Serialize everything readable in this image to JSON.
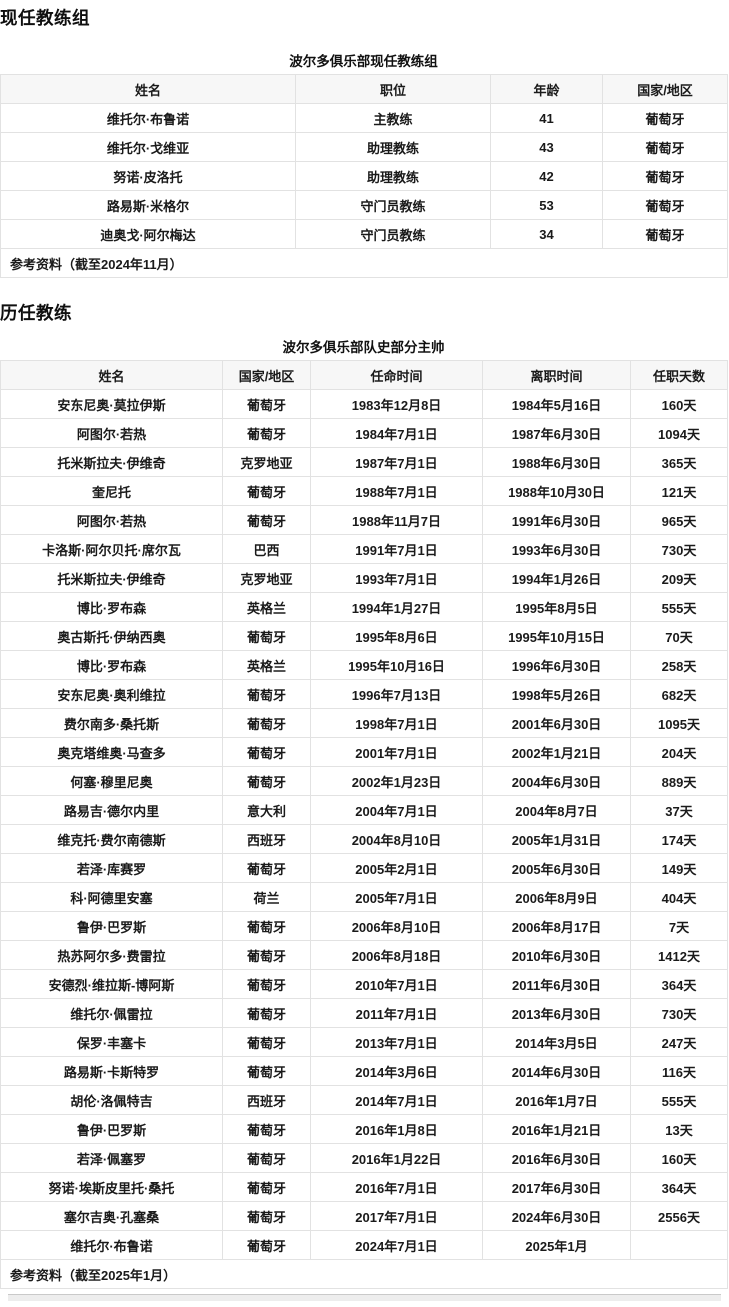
{
  "colors": {
    "table_header_bg": "#f7f7f7",
    "table_border": "#e2e2e2",
    "navbox_edge": "#ededed"
  },
  "sections": [
    {
      "heading": "现任教练组",
      "table": {
        "caption": "波尔多俱乐部现任教练组",
        "headers": [
          "姓名",
          "职位",
          "年龄",
          "国家/地区"
        ],
        "rows": [
          [
            "维托尔·布鲁诺",
            "主教练",
            "41",
            "葡萄牙"
          ],
          [
            "维托尔·戈维亚",
            "助理教练",
            "43",
            "葡萄牙"
          ],
          [
            "努诺·皮洛托",
            "助理教练",
            "42",
            "葡萄牙"
          ],
          [
            "路易斯·米格尔",
            "守门员教练",
            "53",
            "葡萄牙"
          ],
          [
            "迪奥戈·阿尔梅达",
            "守门员教练",
            "34",
            "葡萄牙"
          ]
        ],
        "footer": "参考资料（截至2024年11月）"
      }
    },
    {
      "heading": "历任教练",
      "table": {
        "caption": "波尔多俱乐部队史部分主帅",
        "headers": [
          "姓名",
          "国家/地区",
          "任命时间",
          "离职时间",
          "任职天数"
        ],
        "rows": [
          [
            "安东尼奥·莫拉伊斯",
            "葡萄牙",
            "1983年12月8日",
            "1984年5月16日",
            "160天"
          ],
          [
            "阿图尔·若热",
            "葡萄牙",
            "1984年7月1日",
            "1987年6月30日",
            "1094天"
          ],
          [
            "托米斯拉夫·伊维奇",
            "克罗地亚",
            "1987年7月1日",
            "1988年6月30日",
            "365天"
          ],
          [
            "奎尼托",
            "葡萄牙",
            "1988年7月1日",
            "1988年10月30日",
            "121天"
          ],
          [
            "阿图尔·若热",
            "葡萄牙",
            "1988年11月7日",
            "1991年6月30日",
            "965天"
          ],
          [
            "卡洛斯·阿尔贝托·席尔瓦",
            "巴西",
            "1991年7月1日",
            "1993年6月30日",
            "730天"
          ],
          [
            "托米斯拉夫·伊维奇",
            "克罗地亚",
            "1993年7月1日",
            "1994年1月26日",
            "209天"
          ],
          [
            "博比·罗布森",
            "英格兰",
            "1994年1月27日",
            "1995年8月5日",
            "555天"
          ],
          [
            "奥古斯托·伊纳西奥",
            "葡萄牙",
            "1995年8月6日",
            "1995年10月15日",
            "70天"
          ],
          [
            "博比·罗布森",
            "英格兰",
            "1995年10月16日",
            "1996年6月30日",
            "258天"
          ],
          [
            "安东尼奥·奥利维拉",
            "葡萄牙",
            "1996年7月13日",
            "1998年5月26日",
            "682天"
          ],
          [
            "费尔南多·桑托斯",
            "葡萄牙",
            "1998年7月1日",
            "2001年6月30日",
            "1095天"
          ],
          [
            "奥克塔维奥·马查多",
            "葡萄牙",
            "2001年7月1日",
            "2002年1月21日",
            "204天"
          ],
          [
            "何塞·穆里尼奥",
            "葡萄牙",
            "2002年1月23日",
            "2004年6月30日",
            "889天"
          ],
          [
            "路易吉·德尔内里",
            "意大利",
            "2004年7月1日",
            "2004年8月7日",
            "37天"
          ],
          [
            "维克托·费尔南德斯",
            "西班牙",
            "2004年8月10日",
            "2005年1月31日",
            "174天"
          ],
          [
            "若泽·库赛罗",
            "葡萄牙",
            "2005年2月1日",
            "2005年6月30日",
            "149天"
          ],
          [
            "科·阿德里安塞",
            "荷兰",
            "2005年7月1日",
            "2006年8月9日",
            "404天"
          ],
          [
            "鲁伊·巴罗斯",
            "葡萄牙",
            "2006年8月10日",
            "2006年8月17日",
            "7天"
          ],
          [
            "热苏阿尔多·费雷拉",
            "葡萄牙",
            "2006年8月18日",
            "2010年6月30日",
            "1412天"
          ],
          [
            "安德烈·维拉斯-博阿斯",
            "葡萄牙",
            "2010年7月1日",
            "2011年6月30日",
            "364天"
          ],
          [
            "维托尔·佩雷拉",
            "葡萄牙",
            "2011年7月1日",
            "2013年6月30日",
            "730天"
          ],
          [
            "保罗·丰塞卡",
            "葡萄牙",
            "2013年7月1日",
            "2014年3月5日",
            "247天"
          ],
          [
            "路易斯·卡斯特罗",
            "葡萄牙",
            "2014年3月6日",
            "2014年6月30日",
            "116天"
          ],
          [
            "胡伦·洛佩特吉",
            "西班牙",
            "2014年7月1日",
            "2016年1月7日",
            "555天"
          ],
          [
            "鲁伊·巴罗斯",
            "葡萄牙",
            "2016年1月8日",
            "2016年1月21日",
            "13天"
          ],
          [
            "若泽·佩塞罗",
            "葡萄牙",
            "2016年1月22日",
            "2016年6月30日",
            "160天"
          ],
          [
            "努诺·埃斯皮里托·桑托",
            "葡萄牙",
            "2016年7月1日",
            "2017年6月30日",
            "364天"
          ],
          [
            "塞尔吉奥·孔塞桑",
            "葡萄牙",
            "2017年7月1日",
            "2024年6月30日",
            "2556天"
          ],
          [
            "维托尔·布鲁诺",
            "葡萄牙",
            "2024年7月1日",
            "2025年1月",
            ""
          ]
        ],
        "footer": "参考资料（截至2025年1月）"
      }
    }
  ]
}
